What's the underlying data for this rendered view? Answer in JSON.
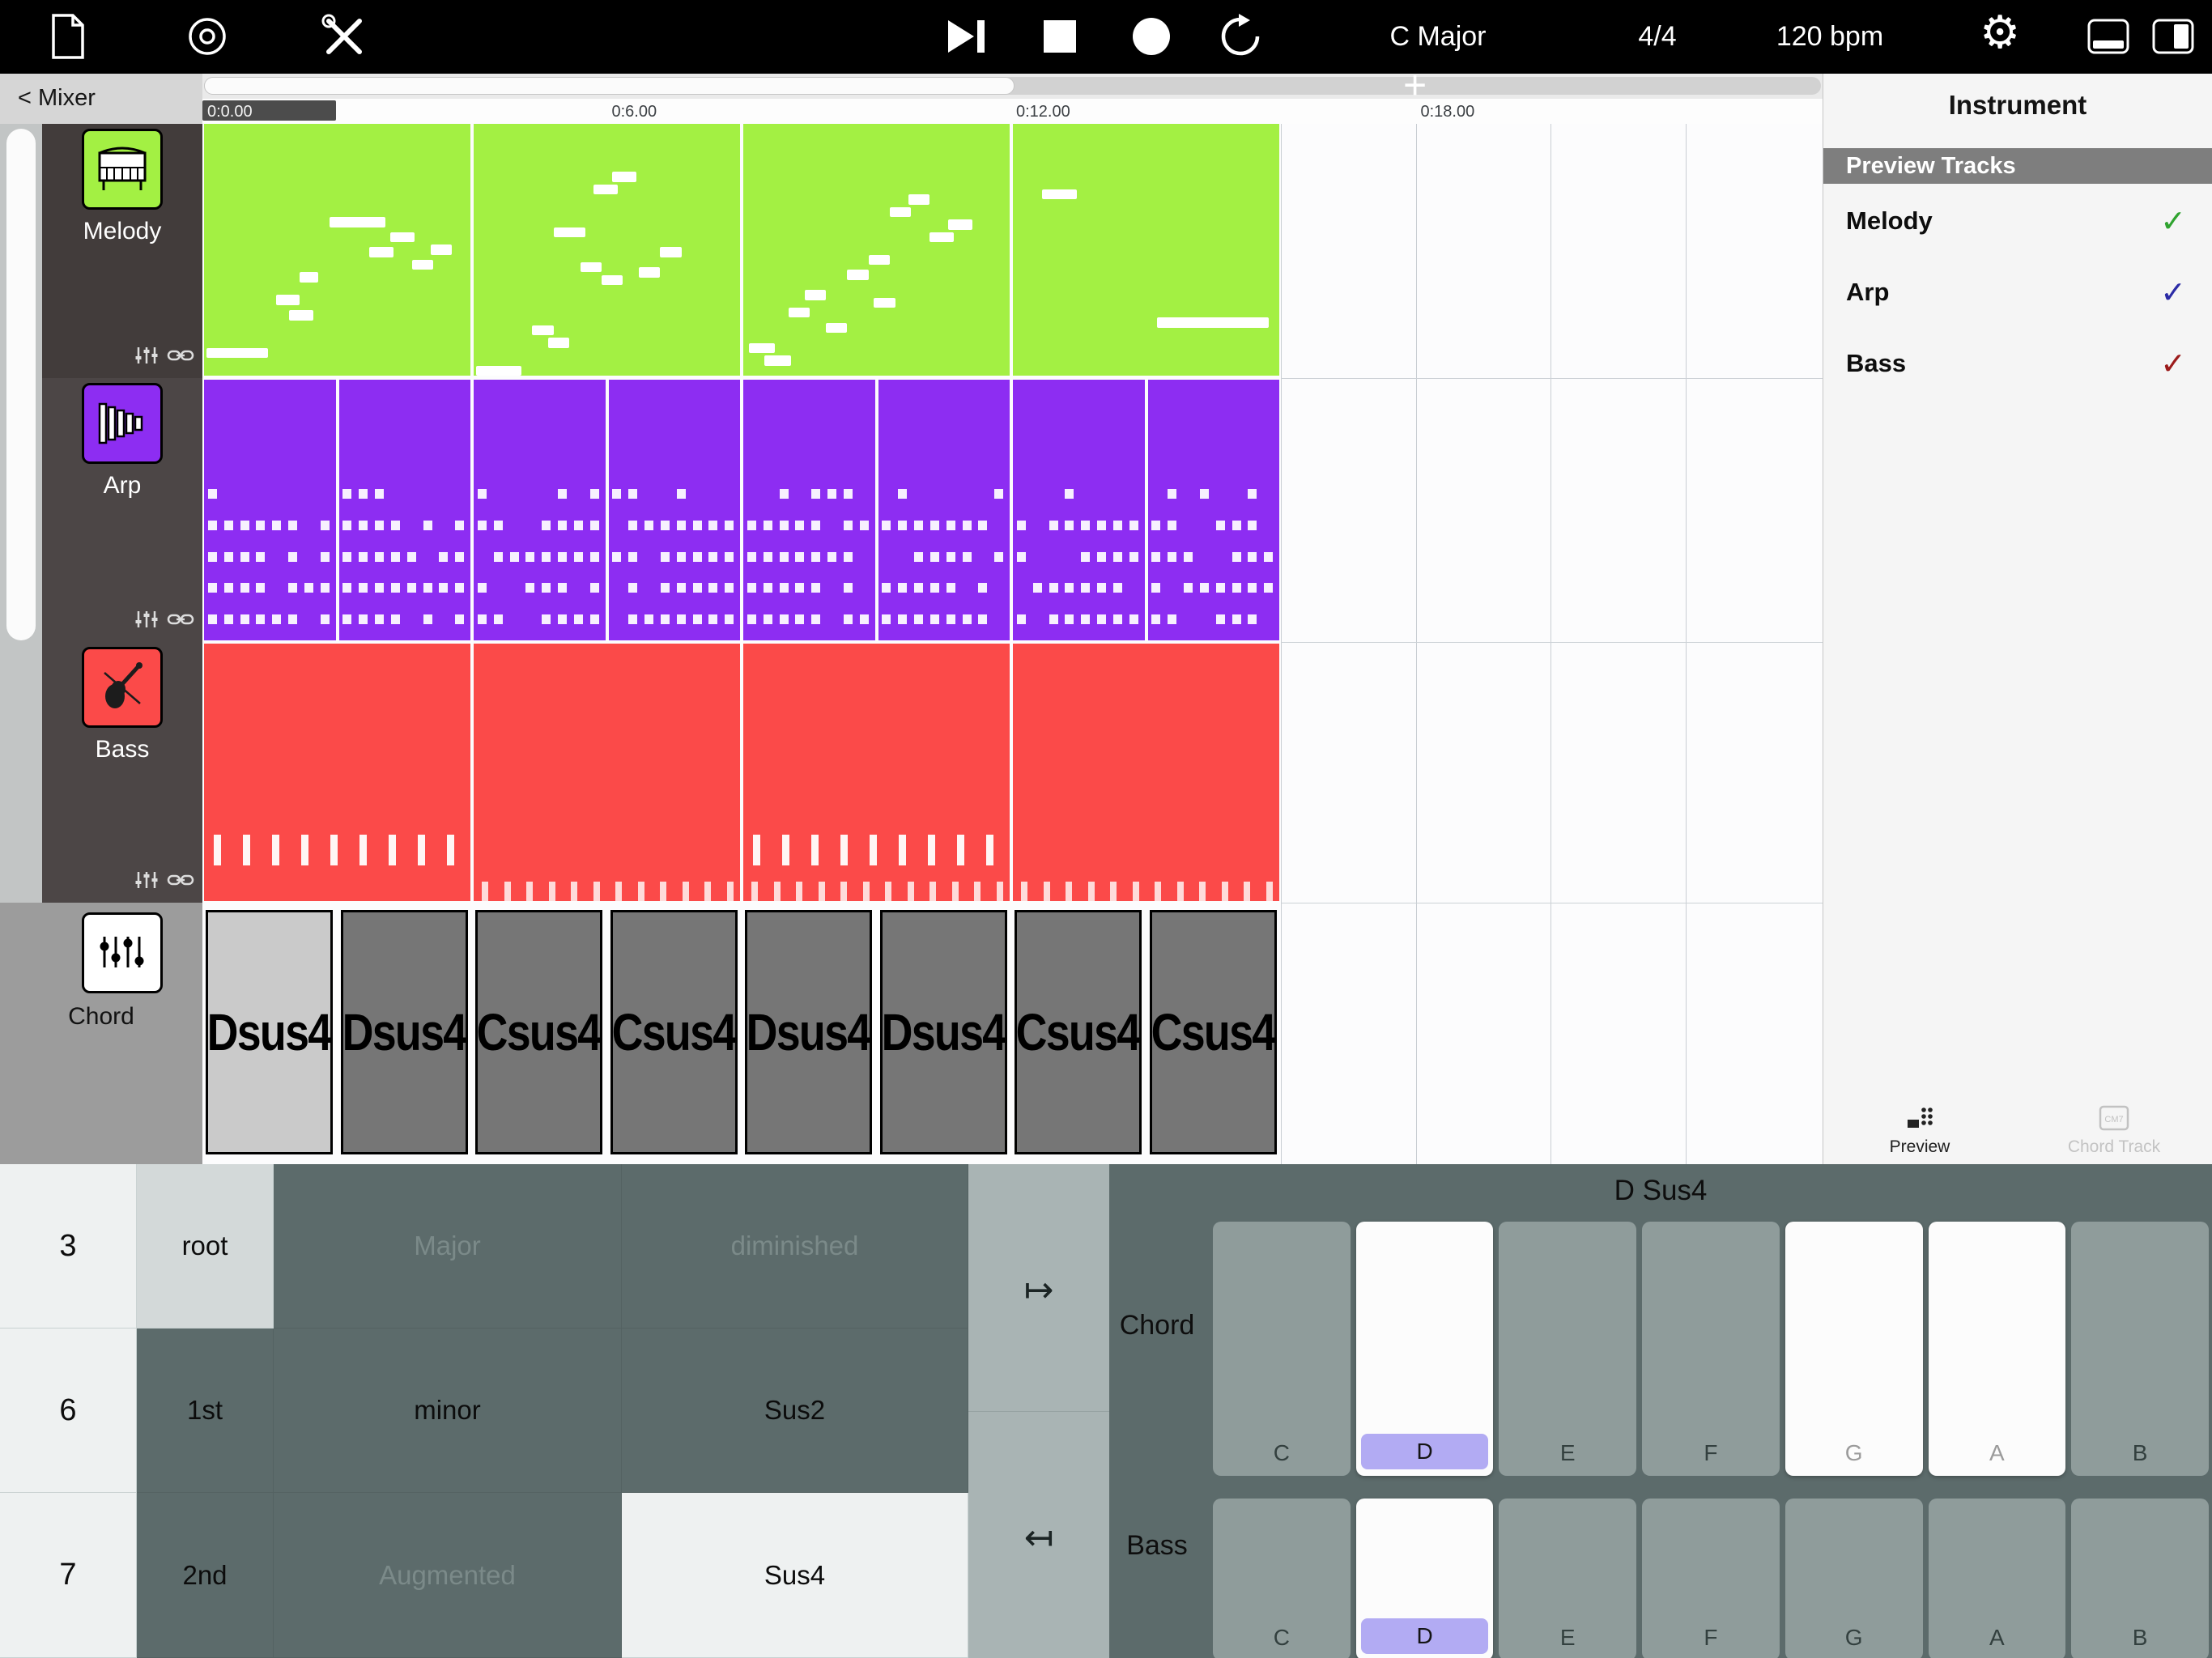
{
  "toolbar": {
    "key": "C Major",
    "time_signature": "4/4",
    "tempo": "120 bpm"
  },
  "nav": {
    "mixer": "< Mixer",
    "add": "+"
  },
  "ruler": [
    "0:0.00",
    "0:6.00",
    "0:12.00",
    "0:18.00"
  ],
  "tracks": [
    {
      "name": "Melody"
    },
    {
      "name": "Arp"
    },
    {
      "name": "Bass"
    },
    {
      "name": "Chord"
    }
  ],
  "chords": [
    "Dsus4",
    "Dsus4",
    "Csus4",
    "Csus4",
    "Dsus4",
    "Dsus4",
    "Csus4",
    "Csus4"
  ],
  "panel": {
    "title": "Instrument",
    "section": "Preview Tracks",
    "items": [
      {
        "label": "Melody",
        "check": "✓",
        "color": "#2fa32f"
      },
      {
        "label": "Arp",
        "check": "✓",
        "color": "#2b2ba6"
      },
      {
        "label": "Bass",
        "check": "✓",
        "color": "#9c1b1b"
      }
    ],
    "tabs": [
      {
        "label": "Preview"
      },
      {
        "label": "Chord Track",
        "icon_text": "CM7"
      }
    ]
  },
  "editor": {
    "string_options": [
      "3",
      "6",
      "7"
    ],
    "inversion_options": [
      "root",
      "1st",
      "2nd"
    ],
    "quality_rows": [
      [
        "Major",
        "diminished"
      ],
      [
        "minor",
        "Sus2"
      ],
      [
        "Augmented",
        "Sus4"
      ]
    ],
    "arrow_right": "↦",
    "arrow_left": "↤",
    "current_chord": "D Sus4",
    "chord_row_label": "Chord",
    "bass_row_label": "Bass",
    "notes": [
      "C",
      "D",
      "E",
      "F",
      "G",
      "A",
      "B"
    ],
    "chord_notes": [
      "D",
      "G",
      "A"
    ],
    "chord_root": "D",
    "bass_notes": [
      "D"
    ],
    "bass_root": "D"
  },
  "colors": {
    "melody": "#a3f043",
    "arp": "#8d2df2",
    "bass": "#fb4a49"
  }
}
